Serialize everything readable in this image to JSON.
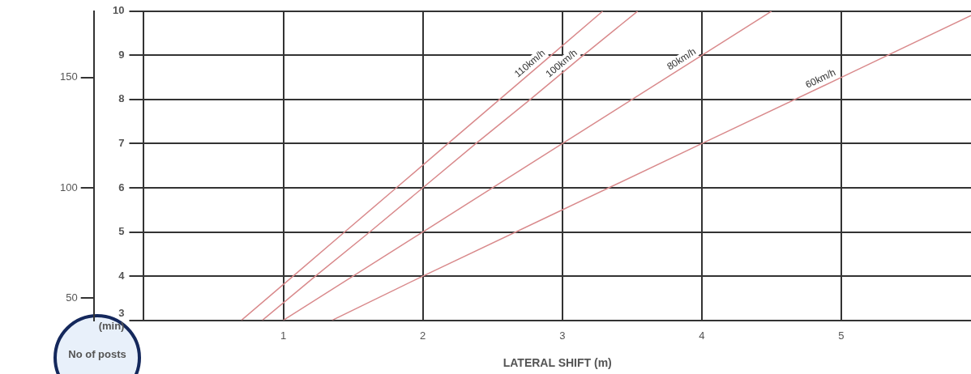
{
  "chart_data": {
    "type": "line",
    "xlabel": "LATERAL SHIFT (m)",
    "ylabel": "No of posts",
    "xlim": [
      0,
      5.93
    ],
    "xticks": [
      1,
      2,
      3,
      4,
      5
    ],
    "ylim": [
      3,
      10
    ],
    "yticks": [
      {
        "value": 3,
        "label": "3 (min)"
      },
      4,
      5,
      6,
      7,
      8,
      9,
      10
    ],
    "y2lim": [
      40,
      180
    ],
    "y2ticks": [
      50,
      100,
      150
    ],
    "grid": true,
    "legend": false,
    "marker": "none",
    "line_style": "solid",
    "series": [
      {
        "name": "110km/h",
        "color": "#d98a8c",
        "x": [
          0.7,
          1.07,
          1.44,
          1.81,
          2.18,
          2.55,
          2.92,
          3.29
        ],
        "values": [
          3,
          4,
          5,
          6,
          7,
          8,
          9,
          10
        ]
      },
      {
        "name": "100km/h",
        "color": "#d98a8c",
        "x": [
          0.85,
          1.23,
          1.62,
          2,
          2.38,
          2.77,
          3.15,
          3.54
        ],
        "values": [
          3,
          4,
          5,
          6,
          7,
          8,
          9,
          10
        ]
      },
      {
        "name": "80km/h",
        "color": "#d98a8c",
        "x": [
          1,
          2,
          3,
          4,
          4.5
        ],
        "values": [
          3,
          5,
          7,
          9,
          10
        ]
      },
      {
        "name": "60km/h",
        "color": "#d98a8c",
        "x": [
          1.35,
          2,
          3,
          4,
          5,
          5.93
        ],
        "values": [
          3,
          4,
          5.5,
          7,
          8.5,
          9.9
        ]
      }
    ]
  }
}
